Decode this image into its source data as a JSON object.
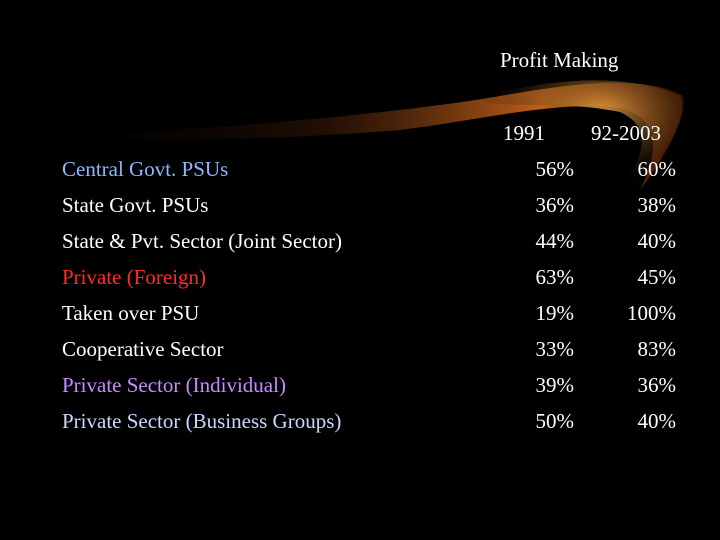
{
  "table": {
    "heading": "Profit Making",
    "columns": [
      "1991",
      "92-2003"
    ],
    "rows": [
      {
        "label": "Central Govt. PSUs",
        "v1991": "56%",
        "v2003": "60%",
        "color": "#8fb8ff"
      },
      {
        "label": "State Govt. PSUs",
        "v1991": "36%",
        "v2003": "38%",
        "color": "#ffffff"
      },
      {
        "label": "State & Pvt. Sector (Joint Sector)",
        "v1991": "44%",
        "v2003": "40%",
        "color": "#ffffff"
      },
      {
        "label": "Private (Foreign)",
        "v1991": "63%",
        "v2003": "45%",
        "color": "#ff2a2a"
      },
      {
        "label": "Taken over PSU",
        "v1991": "19%",
        "v2003": "100%",
        "color": "#ffffff"
      },
      {
        "label": "Cooperative Sector",
        "v1991": "33%",
        "v2003": "83%",
        "color": "#ffffff"
      },
      {
        "label": "Private Sector (Individual)",
        "v1991": "39%",
        "v2003": "36%",
        "color": "#c78bff"
      },
      {
        "label": "Private Sector (Business Groups)",
        "v1991": "50%",
        "v2003": "40%",
        "color": "#c8d8ff"
      }
    ]
  }
}
